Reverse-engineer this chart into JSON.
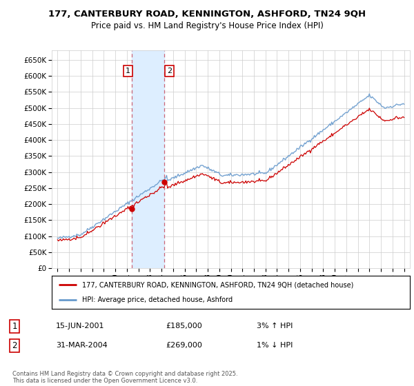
{
  "title_line1": "177, CANTERBURY ROAD, KENNINGTON, ASHFORD, TN24 9QH",
  "title_line2": "Price paid vs. HM Land Registry's House Price Index (HPI)",
  "ylim": [
    0,
    680000
  ],
  "yticks": [
    0,
    50000,
    100000,
    150000,
    200000,
    250000,
    300000,
    350000,
    400000,
    450000,
    500000,
    550000,
    600000,
    650000
  ],
  "ytick_labels": [
    "£0",
    "£50K",
    "£100K",
    "£150K",
    "£200K",
    "£250K",
    "£300K",
    "£350K",
    "£400K",
    "£450K",
    "£500K",
    "£550K",
    "£600K",
    "£650K"
  ],
  "xlim_start": 1994.5,
  "xlim_end": 2025.5,
  "purchase1_year": 2001.45,
  "purchase1_price": 185000,
  "purchase2_year": 2004.25,
  "purchase2_price": 269000,
  "hpi_color": "#6699cc",
  "price_color": "#cc0000",
  "shade_color": "#ddeeff",
  "legend_label1": "177, CANTERBURY ROAD, KENNINGTON, ASHFORD, TN24 9QH (detached house)",
  "legend_label2": "HPI: Average price, detached house, Ashford",
  "table_row1": [
    "1",
    "15-JUN-2001",
    "£185,000",
    "3% ↑ HPI"
  ],
  "table_row2": [
    "2",
    "31-MAR-2004",
    "£269,000",
    "1% ↓ HPI"
  ],
  "footer": "Contains HM Land Registry data © Crown copyright and database right 2025.\nThis data is licensed under the Open Government Licence v3.0.",
  "bg_color": "#ffffff",
  "grid_color": "#cccccc"
}
